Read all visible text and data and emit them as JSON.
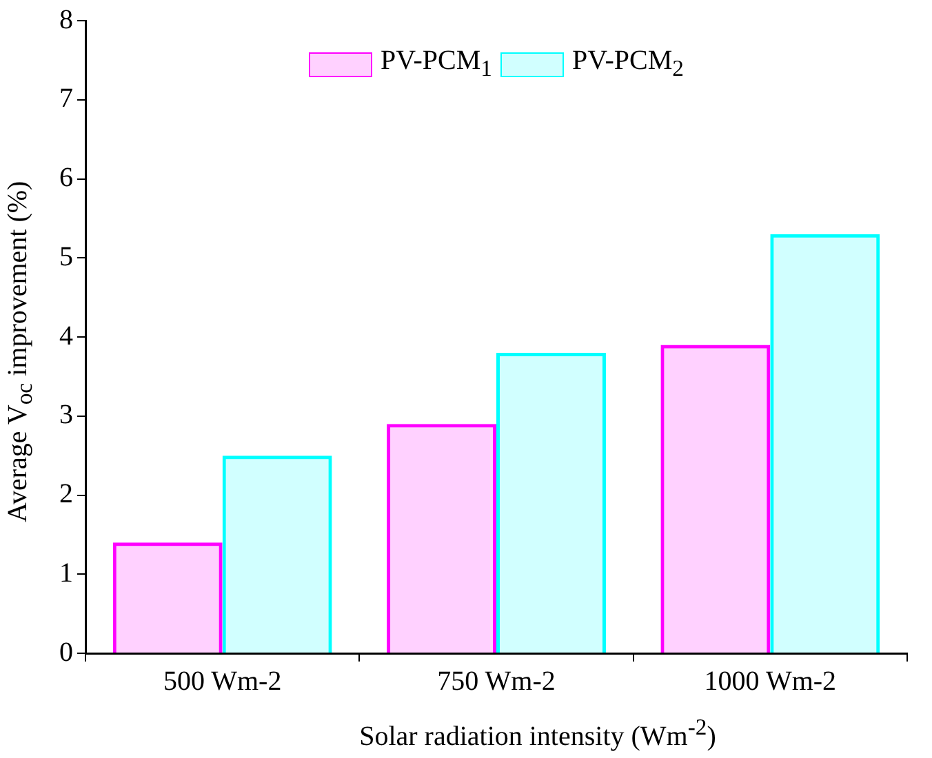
{
  "chart_data": {
    "type": "bar",
    "xlabel": "Solar radiation intensity (Wm$^{-2}$)",
    "ylabel": "Average V$_{oc}$ improvement (%)",
    "categories": [
      "500 Wm-2",
      "750 Wm-2",
      "1000 Wm-2"
    ],
    "series": [
      {
        "name": "PV-PCM$_{1}$",
        "color": "#ff00ff",
        "values": [
          1.4,
          2.9,
          3.9
        ]
      },
      {
        "name": "PV-PCM$_{2}$",
        "color": "#00ffff",
        "values": [
          2.5,
          3.8,
          5.3
        ]
      }
    ],
    "ylim": [
      0,
      8
    ],
    "yticks": [
      0,
      1,
      2,
      3,
      4,
      5,
      6,
      7,
      8
    ],
    "grid": false,
    "legend": "top"
  }
}
